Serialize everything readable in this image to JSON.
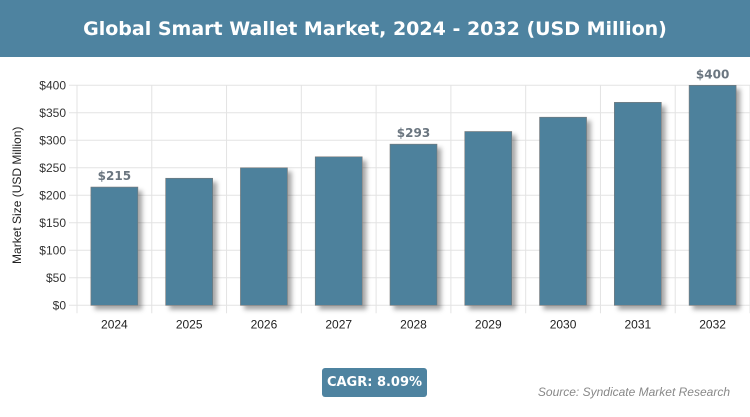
{
  "header": {
    "title": "Global Smart Wallet Market, 2024 - 2032 (USD Million)"
  },
  "chart_data": {
    "type": "bar",
    "title": "Global Smart Wallet Market, 2024 - 2032 (USD Million)",
    "xlabel": "",
    "ylabel": "Market Size (USD Million)",
    "categories": [
      "2024",
      "2025",
      "2026",
      "2027",
      "2028",
      "2029",
      "2030",
      "2031",
      "2032"
    ],
    "values": [
      215,
      231,
      250,
      270,
      293,
      316,
      342,
      369,
      400
    ],
    "data_labels": {
      "0": "$215",
      "4": "$293",
      "8": "$400"
    },
    "ylim": [
      0,
      400
    ],
    "yticks": [
      "$0",
      "$50",
      "$100",
      "$150",
      "$200",
      "$250",
      "$300",
      "$350",
      "$400"
    ],
    "grid": true,
    "bar_color": "#4d819c"
  },
  "footer": {
    "cagr": "CAGR: 8.09%",
    "source": "Source: Syndicate Market Research"
  }
}
